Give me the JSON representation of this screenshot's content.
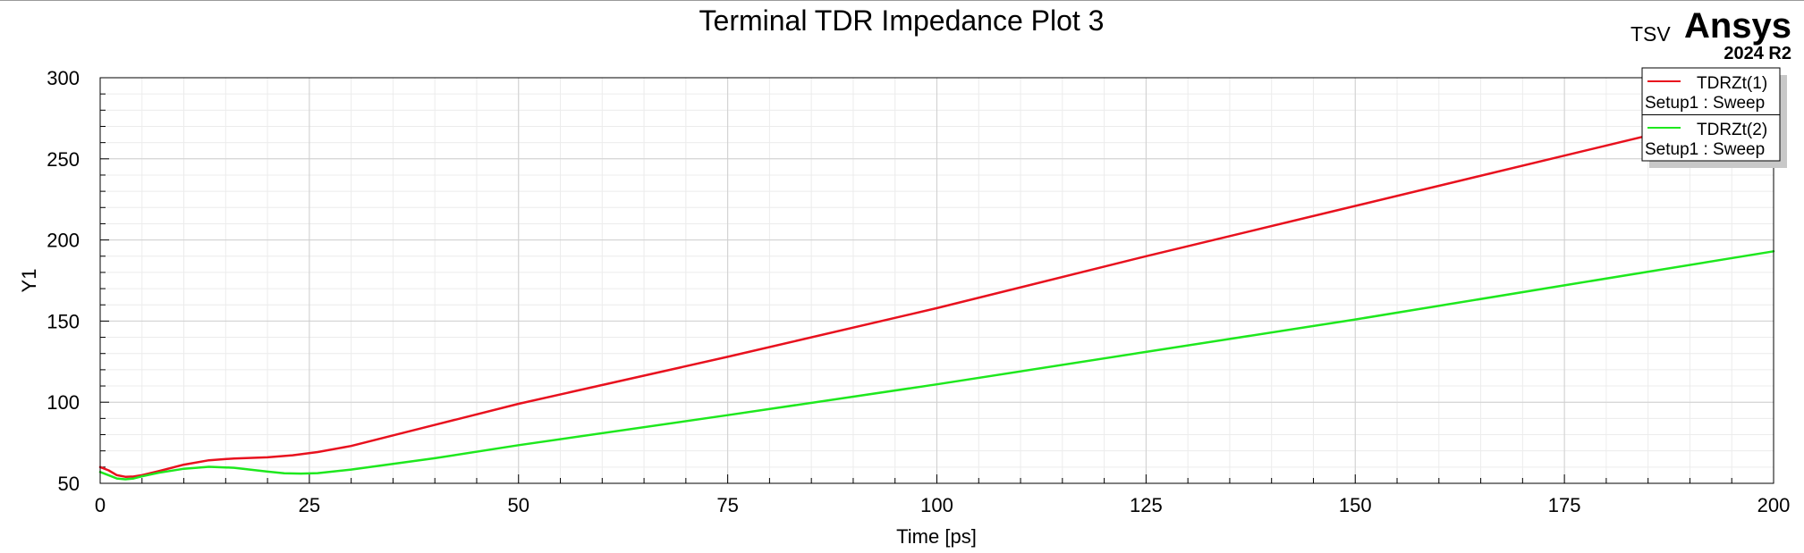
{
  "watermark": {
    "project": "TSV",
    "brand": "Ansys",
    "version": "2024 R2"
  },
  "chart_data": {
    "type": "line",
    "title": "Terminal TDR Impedance Plot 3",
    "xlabel": "Time [ps]",
    "ylabel": "Y1",
    "xlim": [
      0,
      200
    ],
    "ylim": [
      50,
      300
    ],
    "x_ticks": [
      0,
      25,
      50,
      75,
      100,
      125,
      150,
      175,
      200
    ],
    "y_ticks": [
      50,
      100,
      150,
      200,
      250,
      300
    ],
    "grid": true,
    "legend_position": "top-right",
    "series": [
      {
        "name": "TDRZt(1)",
        "setup": "Setup1 : Sweep",
        "color": "#e8111e",
        "x": [
          0,
          1,
          2,
          3,
          4,
          5,
          7,
          10,
          13,
          16,
          20,
          23,
          26,
          30,
          40,
          50,
          75,
          100,
          125,
          150,
          175,
          200
        ],
        "y": [
          60,
          58,
          55,
          54,
          54.2,
          55,
          57.5,
          61.5,
          64.2,
          65.3,
          66,
          67.3,
          69.3,
          73,
          86,
          99,
          128,
          158,
          190,
          221,
          252,
          283
        ]
      },
      {
        "name": "TDRZt(2)",
        "setup": "Setup1 : Sweep",
        "color": "#1ee81e",
        "x": [
          0,
          1,
          2,
          3,
          4,
          5,
          7,
          10,
          13,
          16,
          20,
          22,
          24,
          26,
          30,
          40,
          50,
          75,
          100,
          125,
          150,
          175,
          200
        ],
        "y": [
          57,
          55,
          53,
          52.5,
          53,
          54.3,
          56.5,
          59,
          60.2,
          59.6,
          57.2,
          56.2,
          56,
          56.3,
          58.5,
          65.5,
          73.5,
          92,
          111,
          131,
          151,
          172,
          193
        ]
      }
    ]
  }
}
